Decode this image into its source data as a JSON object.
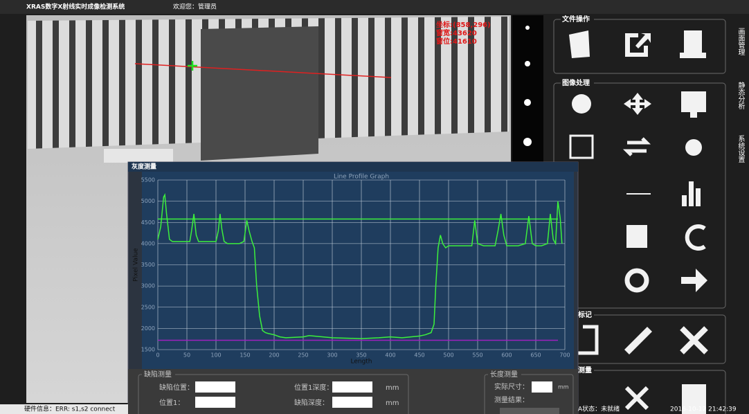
{
  "header": {
    "title": "XRAS数字X射线实时成像检测系统",
    "welcome": "欢迎您：管理员"
  },
  "overlay": [
    "坐标:(858,296)",
    "窗宽:43620",
    "窗位:41610"
  ],
  "toolbar": {
    "groups": [
      "文件操作",
      "图像处理",
      "标记",
      "测量"
    ],
    "tabs": [
      "画面管理",
      "静态分析",
      "系统设置"
    ]
  },
  "dialog": {
    "title": "灰度测量",
    "defect_group": "缺陷测量",
    "defect_labels": [
      "缺陷位置：",
      "位置1：",
      "位置1深度：",
      "缺陷深度："
    ],
    "units": [
      "mm",
      "mm"
    ],
    "length_group": "长度测量",
    "length_labels": [
      "实际尺寸：",
      "测量结果："
    ],
    "length_unit": "mm"
  },
  "chart_data": {
    "type": "line",
    "title": "Line Profile Graph",
    "x_label": "Length",
    "y_label": "Pixel Value",
    "x": [
      0,
      5,
      10,
      12,
      15,
      20,
      25,
      40,
      55,
      58,
      62,
      66,
      70,
      80,
      100,
      104,
      107,
      110,
      114,
      120,
      140,
      148,
      153,
      157,
      162,
      166,
      170,
      175,
      180,
      185,
      190,
      200,
      210,
      220,
      250,
      260,
      300,
      350,
      380,
      400,
      420,
      450,
      460,
      470,
      475,
      478,
      482,
      486,
      490,
      495,
      500,
      520,
      540,
      545,
      550,
      560,
      580,
      585,
      590,
      595,
      600,
      620,
      632,
      638,
      644,
      650,
      660,
      670,
      675,
      680,
      684,
      688,
      692,
      695
    ],
    "series": [
      {
        "color": "#3cf03c",
        "values": [
          4100,
          4400,
          5100,
          5150,
          4700,
          4100,
          4050,
          4050,
          4050,
          4300,
          4700,
          4200,
          4050,
          4050,
          4050,
          4300,
          4700,
          4350,
          4050,
          4000,
          4000,
          4050,
          4550,
          4300,
          4050,
          3900,
          3000,
          2300,
          1950,
          1900,
          1880,
          1850,
          1800,
          1780,
          1800,
          1830,
          1780,
          1760,
          1780,
          1800,
          1780,
          1820,
          1850,
          1900,
          2100,
          3000,
          3900,
          4200,
          4000,
          3900,
          3950,
          3950,
          3950,
          4550,
          4000,
          3950,
          3950,
          4300,
          4700,
          4200,
          3950,
          3950,
          4000,
          4650,
          4000,
          3950,
          3950,
          4000,
          4700,
          4100,
          4000,
          5000,
          4600,
          4000
        ]
      }
    ],
    "hlines": [
      {
        "value": 4580,
        "color": "#3cf03c"
      },
      {
        "value": 1720,
        "color": "#a020c0"
      }
    ],
    "xlim": [
      0,
      700
    ],
    "ylim": [
      1500,
      5500
    ],
    "xticks": [
      0,
      50,
      100,
      150,
      200,
      250,
      300,
      350,
      400,
      450,
      500,
      550,
      600,
      650,
      700
    ],
    "yticks": [
      1500,
      2000,
      2500,
      3000,
      3500,
      4000,
      4500,
      5000,
      5500
    ],
    "grid": true,
    "background": "#1f3d5e"
  },
  "status": {
    "hardware": "硬件信息：ERR: s1,s2 connect",
    "state": "A状态：未就绪",
    "time": "2016-10-12 21:42:39"
  }
}
